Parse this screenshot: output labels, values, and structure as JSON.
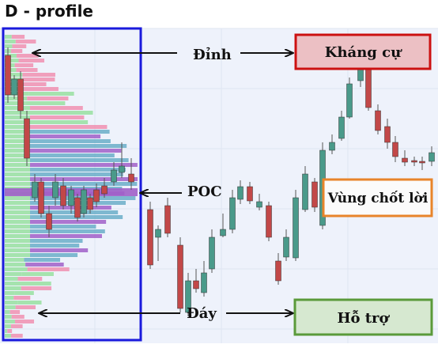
{
  "title": "D - profile",
  "labels": {
    "peak": "Đỉnh",
    "poc": "POC",
    "bottom": "Đáy"
  },
  "boxes": {
    "resistance": {
      "label": "Kháng cự",
      "border": "#cc1111",
      "fill": "#ecc0c4"
    },
    "profit_zone": {
      "label": "Vùng chốt lời",
      "border": "#e8842a",
      "fill": "#fbfbfb"
    },
    "support": {
      "label": "Hỗ trợ",
      "border": "#5a9a3a",
      "fill": "#d6e8d0"
    }
  },
  "colors": {
    "profile_frame": "#1a1adc",
    "chart_bg": "#eef2fb",
    "bull_candle": "#4a9a8a",
    "bear_candle": "#c24848",
    "vp_pink": "#f090b0",
    "vp_green": "#98e0a0",
    "vp_blue": "#6aaec8",
    "vp_purple": "#a060c8"
  }
}
